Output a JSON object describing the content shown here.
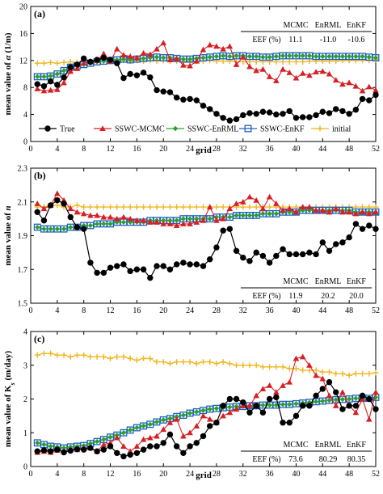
{
  "chart_data": [
    {
      "type": "line",
      "panel_label": "(a)",
      "ylabel": "mean value of α (1/m)",
      "xlabel": "grid",
      "xlim": [
        0,
        52
      ],
      "ylim": [
        0,
        20
      ],
      "x_ticks": [
        0,
        4,
        8,
        12,
        16,
        20,
        24,
        28,
        32,
        36,
        40,
        44,
        48,
        52
      ],
      "y_ticks": [
        0,
        4,
        8,
        12,
        16,
        20
      ],
      "legend_position": "bottom",
      "legend": [
        "True",
        "SSWC-MCMC",
        "SSWC-EnRML",
        "SSWC-EnKF",
        "initial"
      ],
      "eef_table": {
        "row_label": "EEF (%)",
        "headers": [
          "MCMC",
          "EnRML",
          "EnKF"
        ],
        "values": [
          "11.1",
          "-11.0",
          "-10.6"
        ]
      },
      "series": [
        {
          "name": "True",
          "values": [
            8.5,
            8.2,
            8.9,
            8.4,
            9.5,
            11,
            11.4,
            12.3,
            11.8,
            12.1,
            12.4,
            12.1,
            11.6,
            9.4,
            10,
            9.8,
            10.2,
            9.5,
            7.6,
            7.4,
            7.3,
            6.5,
            6.2,
            6.3,
            6.1,
            5.3,
            4.8,
            4.1,
            3.5,
            3.1,
            3.3,
            3.9,
            4.2,
            4.1,
            4.4,
            4.3,
            4.0,
            4.1,
            4.5,
            3.5,
            3.6,
            3.6,
            3.9,
            4.4,
            4.2,
            4.8,
            4.5,
            4.1,
            4.7,
            6.3,
            6.1,
            6.9
          ]
        },
        {
          "name": "SSWC-MCMC",
          "values": [
            7.8,
            7.5,
            7.6,
            7.7,
            8.7,
            10.4,
            10.8,
            11.6,
            11.8,
            12.0,
            13,
            11.9,
            13.7,
            12.8,
            12.6,
            12.4,
            13.1,
            12.9,
            13.7,
            14.6,
            12.1,
            12.3,
            11.3,
            11.2,
            11.9,
            13.6,
            14.3,
            14.1,
            13.7,
            14.1,
            11.4,
            12.5,
            11.1,
            10.5,
            10.7,
            9.6,
            9.0,
            10.7,
            10.2,
            9.4,
            10.1,
            9.8,
            10.3,
            10.4,
            10.0,
            9.1,
            8.5,
            8.7,
            8.2,
            7.5,
            8.1,
            7.6
          ]
        },
        {
          "name": "SSWC-EnRML",
          "values": [
            9.6,
            9.6,
            9.7,
            10.0,
            10.5,
            11.0,
            11.2,
            11.4,
            11.6,
            11.8,
            11.9,
            12.0,
            12.1,
            12.2,
            12.1,
            12.2,
            12.3,
            12.4,
            12.5,
            12.4,
            12.4,
            12.3,
            12.2,
            12.2,
            12.3,
            12.4,
            12.5,
            12.6,
            12.7,
            12.6,
            12.7,
            12.7,
            12.6,
            12.6,
            12.5,
            12.5,
            12.6,
            12.7,
            12.7,
            12.7,
            12.7,
            12.7,
            12.6,
            12.6,
            12.6,
            12.6,
            12.6,
            12.6,
            12.6,
            12.6,
            12.5,
            12.4
          ]
        },
        {
          "name": "SSWC-EnKF",
          "values": [
            9.6,
            9.6,
            9.7,
            10.0,
            10.5,
            11.0,
            11.2,
            11.4,
            11.6,
            11.8,
            11.9,
            12.0,
            12.1,
            12.2,
            12.1,
            12.2,
            12.3,
            12.4,
            12.5,
            12.4,
            12.4,
            12.3,
            12.2,
            12.2,
            12.3,
            12.4,
            12.5,
            12.6,
            12.7,
            12.6,
            12.7,
            12.7,
            12.6,
            12.6,
            12.5,
            12.5,
            12.6,
            12.7,
            12.7,
            12.7,
            12.7,
            12.7,
            12.6,
            12.6,
            12.6,
            12.6,
            12.6,
            12.6,
            12.6,
            12.6,
            12.5,
            12.4
          ]
        },
        {
          "name": "initial",
          "values": [
            11.6,
            11.6,
            11.7,
            11.6,
            11.7,
            11.8,
            11.7,
            11.8,
            11.9,
            11.8,
            11.9,
            11.8,
            11.9,
            12.0,
            11.9,
            12.0,
            11.9,
            12.0,
            11.9,
            12.0,
            11.9,
            11.9,
            11.9,
            11.9,
            11.9,
            11.9,
            12.0,
            11.9,
            11.9,
            11.9,
            11.8,
            11.8,
            11.8,
            11.8,
            11.8,
            11.8,
            11.8,
            11.8,
            11.8,
            11.8,
            11.8,
            11.9,
            11.9,
            11.9,
            11.9,
            11.9,
            12.0,
            12.0,
            12.0,
            12.0,
            12.0,
            12.1
          ]
        }
      ]
    },
    {
      "type": "line",
      "panel_label": "(b)",
      "ylabel": "mean value of n",
      "xlabel": "",
      "xlim": [
        0,
        52
      ],
      "ylim": [
        1.5,
        2.3
      ],
      "x_ticks": [
        0,
        4,
        8,
        12,
        16,
        20,
        24,
        28,
        32,
        36,
        40,
        44,
        48,
        52
      ],
      "y_ticks": [
        1.5,
        1.7,
        1.9,
        2.1,
        2.3
      ],
      "eef_table": {
        "row_label": "EEF (%)",
        "headers": [
          "MCMC",
          "EnRML",
          "EnKF"
        ],
        "values": [
          "11.9",
          "20.2",
          "20.0"
        ]
      },
      "series": [
        {
          "name": "True",
          "values": [
            2.04,
            1.99,
            2.08,
            2.11,
            2.09,
            2.01,
            1.95,
            1.94,
            1.74,
            1.68,
            1.68,
            1.71,
            1.72,
            1.73,
            1.69,
            1.7,
            1.7,
            1.65,
            1.72,
            1.72,
            1.7,
            1.73,
            1.74,
            1.73,
            1.73,
            1.72,
            1.76,
            1.83,
            1.93,
            1.94,
            1.81,
            1.77,
            1.75,
            1.8,
            1.78,
            1.74,
            1.78,
            1.82,
            1.79,
            1.79,
            1.79,
            1.8,
            1.79,
            1.86,
            1.81,
            1.85,
            1.86,
            1.89,
            1.97,
            1.94,
            1.96,
            1.94
          ]
        },
        {
          "name": "SSWC-MCMC",
          "values": [
            2.09,
            2.06,
            2.08,
            2.15,
            2.11,
            2.06,
            2.04,
            2.03,
            2.02,
            2.02,
            2.01,
            2.01,
            2.0,
            2.01,
            2.0,
            1.99,
            1.99,
            1.98,
            1.98,
            1.97,
            1.97,
            1.96,
            1.97,
            1.97,
            1.98,
            1.99,
            2.07,
            1.99,
            2.0,
            2.06,
            2.09,
            2.1,
            2.13,
            2.11,
            2.06,
            2.13,
            2.09,
            2.05,
            2.06,
            2.04,
            2.07,
            2.07,
            2.05,
            2.05,
            2.04,
            2.06,
            2.04,
            2.04,
            2.03,
            2.04,
            2.03,
            2.04
          ]
        },
        {
          "name": "SSWC-EnRML",
          "values": [
            1.95,
            1.94,
            1.94,
            1.94,
            1.94,
            1.95,
            1.95,
            1.96,
            1.96,
            1.97,
            1.97,
            1.97,
            1.98,
            1.98,
            1.98,
            1.98,
            1.98,
            1.99,
            1.99,
            1.99,
            1.99,
            1.99,
            2.0,
            2.0,
            2.0,
            2.0,
            2.0,
            2.01,
            2.01,
            2.01,
            2.02,
            2.02,
            2.02,
            2.02,
            2.03,
            2.03,
            2.03,
            2.04,
            2.04,
            2.04,
            2.05,
            2.05,
            2.05,
            2.05,
            2.05,
            2.05,
            2.05,
            2.05,
            2.04,
            2.04,
            2.04,
            2.04
          ]
        },
        {
          "name": "SSWC-EnKF",
          "values": [
            1.95,
            1.94,
            1.94,
            1.94,
            1.94,
            1.95,
            1.95,
            1.96,
            1.96,
            1.97,
            1.97,
            1.97,
            1.98,
            1.98,
            1.98,
            1.98,
            1.98,
            1.99,
            1.99,
            1.99,
            1.99,
            1.99,
            2.0,
            2.0,
            2.0,
            2.0,
            2.0,
            2.01,
            2.01,
            2.01,
            2.02,
            2.02,
            2.02,
            2.02,
            2.03,
            2.03,
            2.03,
            2.04,
            2.04,
            2.04,
            2.05,
            2.05,
            2.05,
            2.05,
            2.05,
            2.05,
            2.05,
            2.05,
            2.04,
            2.04,
            2.04,
            2.04
          ]
        },
        {
          "name": "initial",
          "values": [
            2.07,
            2.07,
            2.08,
            2.08,
            2.07,
            2.07,
            2.08,
            2.07,
            2.07,
            2.07,
            2.07,
            2.07,
            2.07,
            2.07,
            2.07,
            2.07,
            2.07,
            2.07,
            2.07,
            2.07,
            2.07,
            2.07,
            2.07,
            2.07,
            2.07,
            2.07,
            2.07,
            2.07,
            2.07,
            2.07,
            2.07,
            2.07,
            2.07,
            2.07,
            2.07,
            2.07,
            2.07,
            2.07,
            2.07,
            2.07,
            2.07,
            2.07,
            2.07,
            2.07,
            2.07,
            2.07,
            2.07,
            2.07,
            2.07,
            2.07,
            2.07,
            2.07
          ]
        }
      ]
    },
    {
      "type": "line",
      "panel_label": "(c)",
      "ylabel": "mean value of Ks (m/day)",
      "xlabel": "grid",
      "xlim": [
        0,
        52
      ],
      "ylim": [
        0,
        4
      ],
      "x_ticks": [
        0,
        4,
        8,
        12,
        16,
        20,
        24,
        28,
        32,
        36,
        40,
        44,
        48,
        52
      ],
      "y_ticks": [
        0,
        1,
        2,
        3,
        4
      ],
      "eef_table": {
        "row_label": "EEF (%)",
        "headers": [
          "MCMC",
          "EnRML",
          "EnKF"
        ],
        "values": [
          "73.6",
          "80.29",
          "80.35"
        ]
      },
      "series": [
        {
          "name": "True",
          "values": [
            0.45,
            0.48,
            0.45,
            0.5,
            0.42,
            0.47,
            0.51,
            0.5,
            0.55,
            0.45,
            0.5,
            0.6,
            0.4,
            0.3,
            0.35,
            0.4,
            0.5,
            0.6,
            0.6,
            0.7,
            0.95,
            0.6,
            0.4,
            0.6,
            0.7,
            0.9,
            1.2,
            1.3,
            1.8,
            2.0,
            2.0,
            1.9,
            1.6,
            1.8,
            1.6,
            2.0,
            2.05,
            1.3,
            1.3,
            1.5,
            1.8,
            1.8,
            2.1,
            2.3,
            2.5,
            2.2,
            1.7,
            1.8,
            1.8,
            2.1,
            2.0,
            1.7
          ]
        },
        {
          "name": "SSWC-MCMC",
          "values": [
            0.42,
            0.45,
            0.42,
            0.48,
            0.45,
            0.5,
            0.5,
            0.55,
            0.55,
            0.45,
            0.65,
            0.7,
            0.85,
            0.6,
            0.45,
            0.6,
            0.8,
            0.85,
            0.9,
            1.1,
            1.3,
            1.4,
            0.9,
            1.0,
            1.2,
            1.5,
            1.4,
            1.3,
            1.5,
            1.6,
            1.7,
            1.8,
            1.8,
            2.1,
            2.3,
            2.4,
            2.2,
            2.4,
            2.5,
            3.2,
            3.25,
            3.0,
            2.7,
            2.6,
            2.1,
            1.8,
            2.2,
            1.8,
            1.6,
            2.0,
            1.4,
            2.2
          ]
        },
        {
          "name": "SSWC-EnRML",
          "values": [
            0.7,
            0.65,
            0.6,
            0.58,
            0.55,
            0.58,
            0.6,
            0.62,
            0.68,
            0.74,
            0.8,
            0.87,
            0.93,
            1.0,
            1.08,
            1.15,
            1.2,
            1.25,
            1.32,
            1.38,
            1.42,
            1.48,
            1.52,
            1.58,
            1.62,
            1.66,
            1.7,
            1.72,
            1.74,
            1.76,
            1.78,
            1.78,
            1.8,
            1.8,
            1.82,
            1.82,
            1.82,
            1.84,
            1.84,
            1.86,
            1.88,
            1.9,
            1.92,
            1.94,
            1.96,
            1.98,
            1.99,
            2.0,
            2.02,
            2.02,
            2.02,
            2.05
          ]
        },
        {
          "name": "SSWC-EnKF",
          "values": [
            0.7,
            0.65,
            0.6,
            0.58,
            0.55,
            0.58,
            0.6,
            0.62,
            0.68,
            0.74,
            0.8,
            0.87,
            0.93,
            1.0,
            1.08,
            1.15,
            1.2,
            1.25,
            1.32,
            1.38,
            1.42,
            1.48,
            1.52,
            1.58,
            1.62,
            1.66,
            1.7,
            1.72,
            1.74,
            1.76,
            1.78,
            1.78,
            1.8,
            1.8,
            1.82,
            1.82,
            1.82,
            1.84,
            1.84,
            1.86,
            1.88,
            1.9,
            1.92,
            1.94,
            1.96,
            1.98,
            1.99,
            2.0,
            2.02,
            2.02,
            2.02,
            2.05
          ]
        },
        {
          "name": "initial",
          "values": [
            3.3,
            3.35,
            3.35,
            3.3,
            3.3,
            3.25,
            3.3,
            3.3,
            3.25,
            3.25,
            3.25,
            3.2,
            3.25,
            3.25,
            3.2,
            3.15,
            3.2,
            3.2,
            3.1,
            3.1,
            3.05,
            3.1,
            3.1,
            3.1,
            3.05,
            3.1,
            3.1,
            3.05,
            3.1,
            3.05,
            3.0,
            3.0,
            3.0,
            3.0,
            2.95,
            2.95,
            2.95,
            2.95,
            2.9,
            2.9,
            2.85,
            2.85,
            2.85,
            2.8,
            2.8,
            2.75,
            2.75,
            2.7,
            2.75,
            2.75,
            2.75,
            2.78
          ]
        }
      ]
    }
  ],
  "style": {
    "colors": {
      "True": "#000000",
      "SSWC-MCMC": "#d62024",
      "SSWC-EnRML": "#2ca02c",
      "SSWC-EnKF": "#1f5fbf",
      "initial": "#f2b51e"
    },
    "markers": {
      "True": "circle",
      "SSWC-MCMC": "triangle",
      "SSWC-EnRML": "diamond",
      "SSWC-EnKF": "square",
      "initial": "plus"
    }
  }
}
